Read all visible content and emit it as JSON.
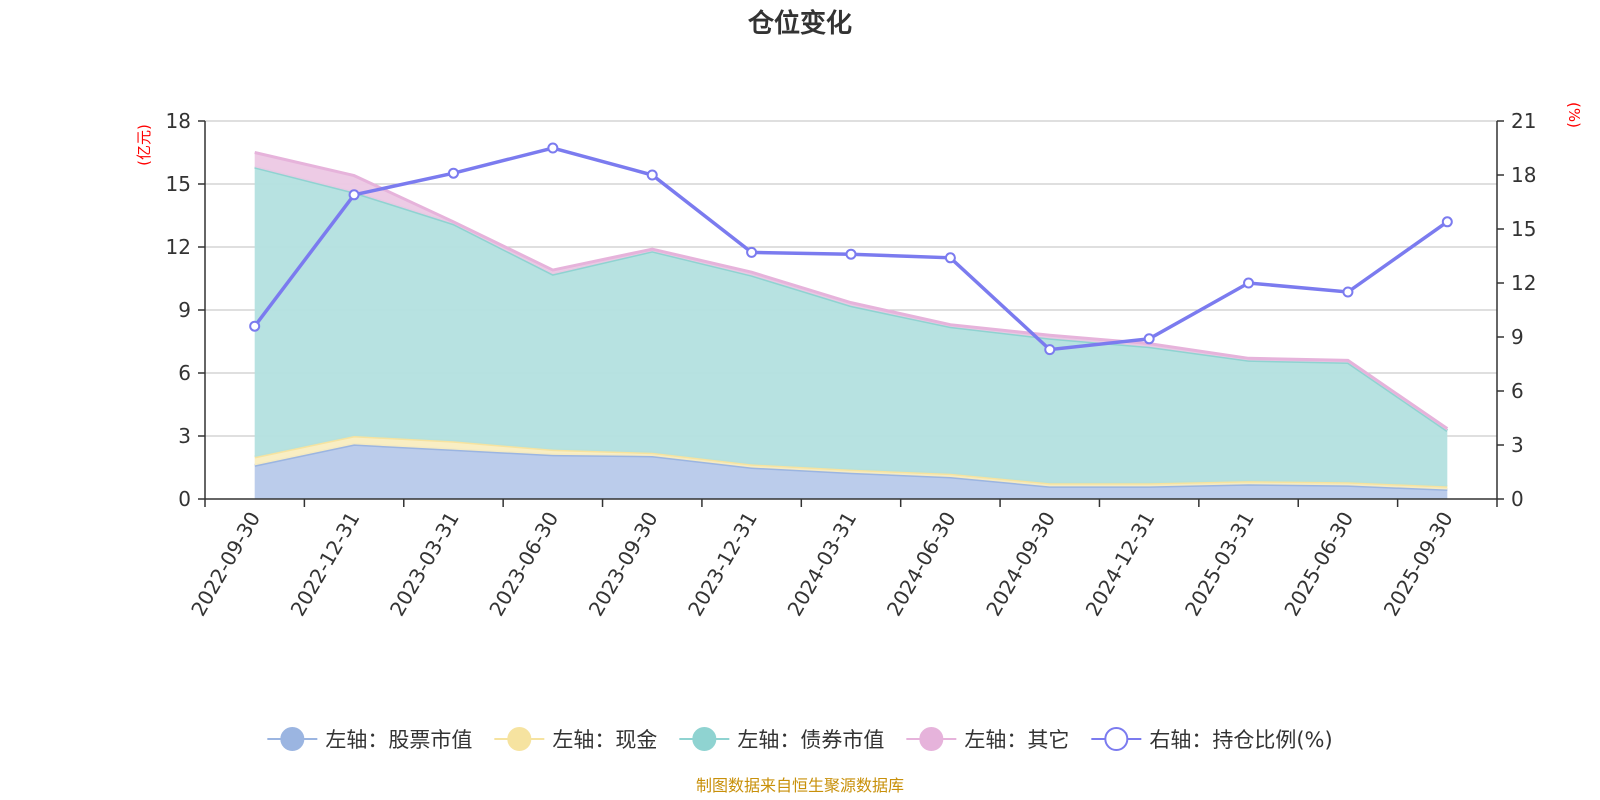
{
  "chart_data": {
    "type": "area",
    "title": "仓位变化",
    "left_axis_unit": "(亿元)",
    "right_axis_unit": "(%)",
    "categories": [
      "2022-09-30",
      "2022-12-31",
      "2023-03-31",
      "2023-06-30",
      "2023-09-30",
      "2023-12-31",
      "2024-03-31",
      "2024-06-30",
      "2024-09-30",
      "2024-12-31",
      "2025-03-31",
      "2025-06-30",
      "2025-09-30"
    ],
    "left_ylim": [
      0,
      18
    ],
    "left_ticks": [
      0,
      3,
      6,
      9,
      12,
      15,
      18
    ],
    "right_ylim": [
      0,
      21
    ],
    "right_ticks": [
      0,
      3,
      6,
      9,
      12,
      15,
      18,
      21
    ],
    "stacked_series": [
      {
        "name": "左轴：股票市值",
        "color": "#9bb5e1",
        "fill": "#b7c9ea",
        "values": [
          1.6,
          2.6,
          2.35,
          2.1,
          2.05,
          1.5,
          1.25,
          1.05,
          0.6,
          0.6,
          0.7,
          0.65,
          0.45
        ]
      },
      {
        "name": "左轴：现金",
        "color": "#f6e3a0",
        "fill": "#f9edc0",
        "values": [
          0.4,
          0.4,
          0.4,
          0.25,
          0.15,
          0.15,
          0.15,
          0.15,
          0.15,
          0.15,
          0.15,
          0.15,
          0.15
        ]
      },
      {
        "name": "左轴：债券市值",
        "color": "#8fd3d1",
        "fill": "#b3e0df",
        "values": [
          13.8,
          11.6,
          10.35,
          8.35,
          9.6,
          9.0,
          7.8,
          7.0,
          6.9,
          6.5,
          5.75,
          5.7,
          2.65
        ]
      },
      {
        "name": "左轴：其它",
        "color": "#e6b3db",
        "fill": "#ecc8e4",
        "values": [
          0.7,
          0.8,
          0.1,
          0.2,
          0.1,
          0.15,
          0.15,
          0.1,
          0.15,
          0.15,
          0.1,
          0.1,
          0.1
        ]
      }
    ],
    "line_series": {
      "name": "右轴：持仓比例(%)",
      "color": "#7b7bef",
      "values": [
        9.6,
        16.9,
        18.1,
        19.5,
        18.0,
        13.7,
        13.6,
        13.4,
        8.3,
        8.9,
        12.0,
        11.5,
        15.4
      ]
    },
    "source": "制图数据来自恒生聚源数据库"
  }
}
